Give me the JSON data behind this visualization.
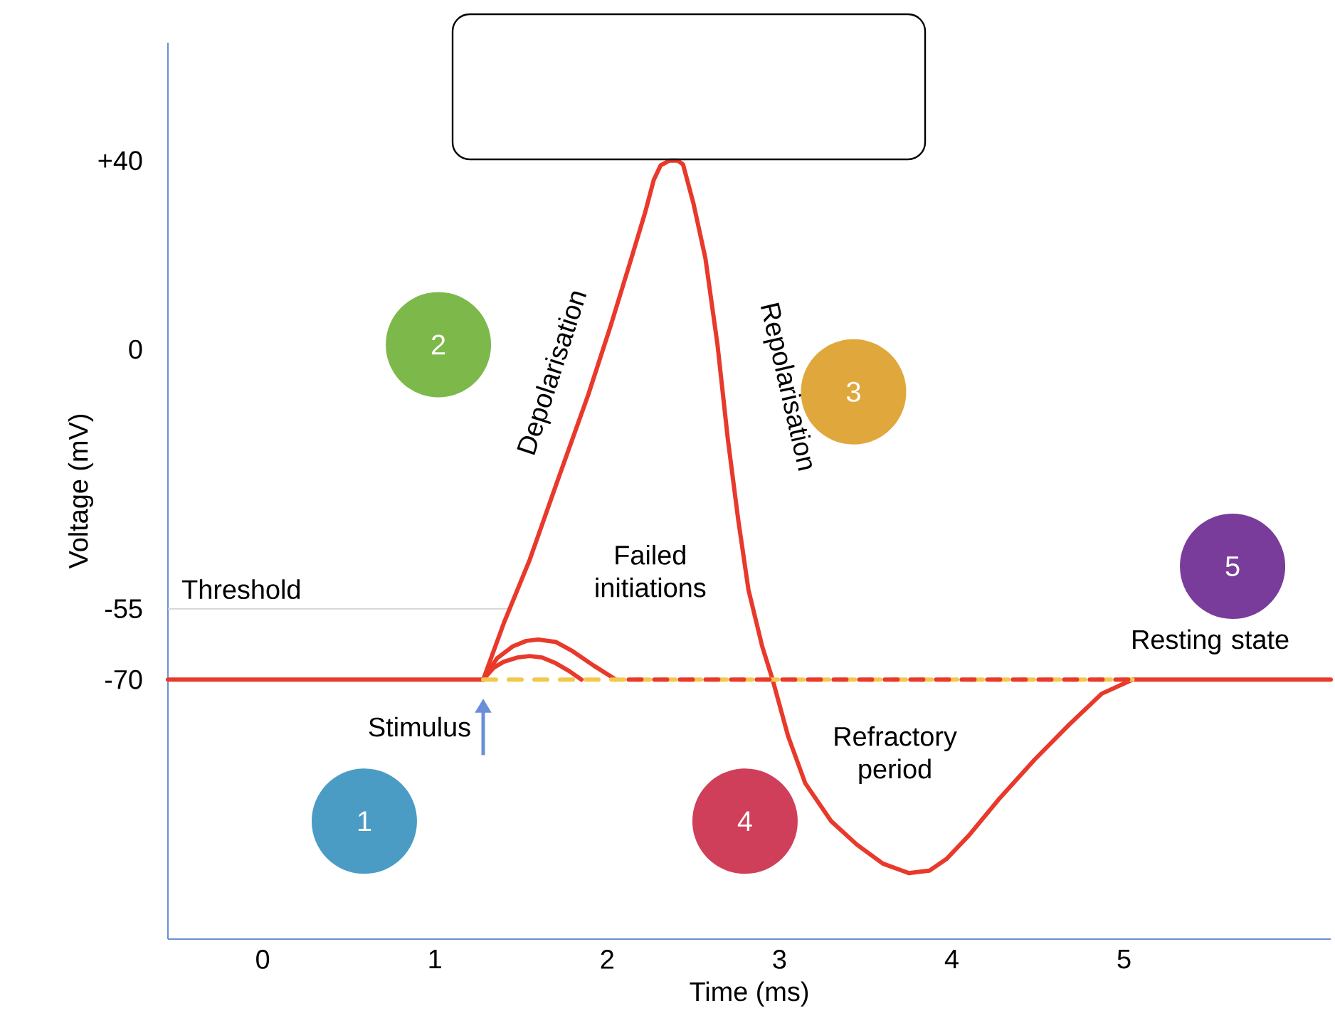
{
  "chart_data": {
    "type": "line",
    "xlabel": "Time (ms)",
    "ylabel": "Voltage (mV)",
    "xlim": [
      -0.55,
      6.2
    ],
    "ylim": [
      -125,
      65
    ],
    "xticks": [
      0,
      1,
      2,
      3,
      4,
      5
    ],
    "yticks": [
      -70,
      -55,
      0,
      {
        "value": 40,
        "label": "+40"
      }
    ],
    "grid": false,
    "series": [
      {
        "color": "#e8392b",
        "line_style": "solid",
        "x": [
          -0.55,
          1.28,
          1.4,
          1.55,
          1.72,
          1.89,
          2.02,
          2.14,
          2.22,
          2.27,
          2.31,
          2.36,
          2.41,
          2.44,
          2.5,
          2.57,
          2.64,
          2.7,
          2.76,
          2.82,
          2.9,
          2.96,
          3.05,
          3.15,
          3.3,
          3.45,
          3.6,
          3.75,
          3.87,
          3.97,
          4.1,
          4.27,
          4.48,
          4.68,
          4.87,
          5.05,
          6.2
        ],
        "values": [
          -70,
          -70,
          -58,
          -44.6,
          -27,
          -9.6,
          5,
          19.3,
          29,
          35.9,
          39,
          40,
          40,
          39.2,
          31,
          19.3,
          1,
          -19,
          -36,
          -51,
          -63,
          -70,
          -82,
          -92,
          -100,
          -105,
          -109,
          -111,
          -110.5,
          -108,
          -103,
          -95.5,
          -87,
          -79.6,
          -73,
          -70,
          -70
        ]
      },
      {
        "color": "#e8392b",
        "line_style": "solid",
        "x": [
          1.28,
          1.36,
          1.45,
          1.53,
          1.6,
          1.7,
          1.8,
          1.92,
          2.05
        ],
        "values": [
          -70,
          -65.5,
          -63,
          -61.8,
          -61.5,
          -62,
          -64,
          -67,
          -70
        ]
      },
      {
        "color": "#e8392b",
        "line_style": "solid",
        "x": [
          1.28,
          1.34,
          1.4,
          1.48,
          1.55,
          1.62,
          1.7,
          1.78,
          1.85
        ],
        "values": [
          -70,
          -67.5,
          -66.2,
          -65.3,
          -65,
          -65.3,
          -66.5,
          -68.2,
          -70
        ]
      },
      {
        "color": "#f2c94c",
        "line_style": "dashed",
        "x": [
          1.28,
          5.05
        ],
        "values": [
          -70,
          -70
        ]
      },
      {
        "color": "#e8392b",
        "line_style": "dashed",
        "x": [
          2.05,
          5.05
        ],
        "values": [
          -70,
          -70
        ]
      }
    ],
    "ref_lines": [
      {
        "axis": "y",
        "value": -55,
        "label": "Threshold",
        "color": "#d6d6d6"
      }
    ],
    "annotations": [
      "Stimulus",
      "Depolarisation",
      "Failed initiations",
      "Repolarisation",
      "Refractory period",
      "Resting state",
      "1",
      "2",
      "3",
      "4",
      "5"
    ]
  }
}
